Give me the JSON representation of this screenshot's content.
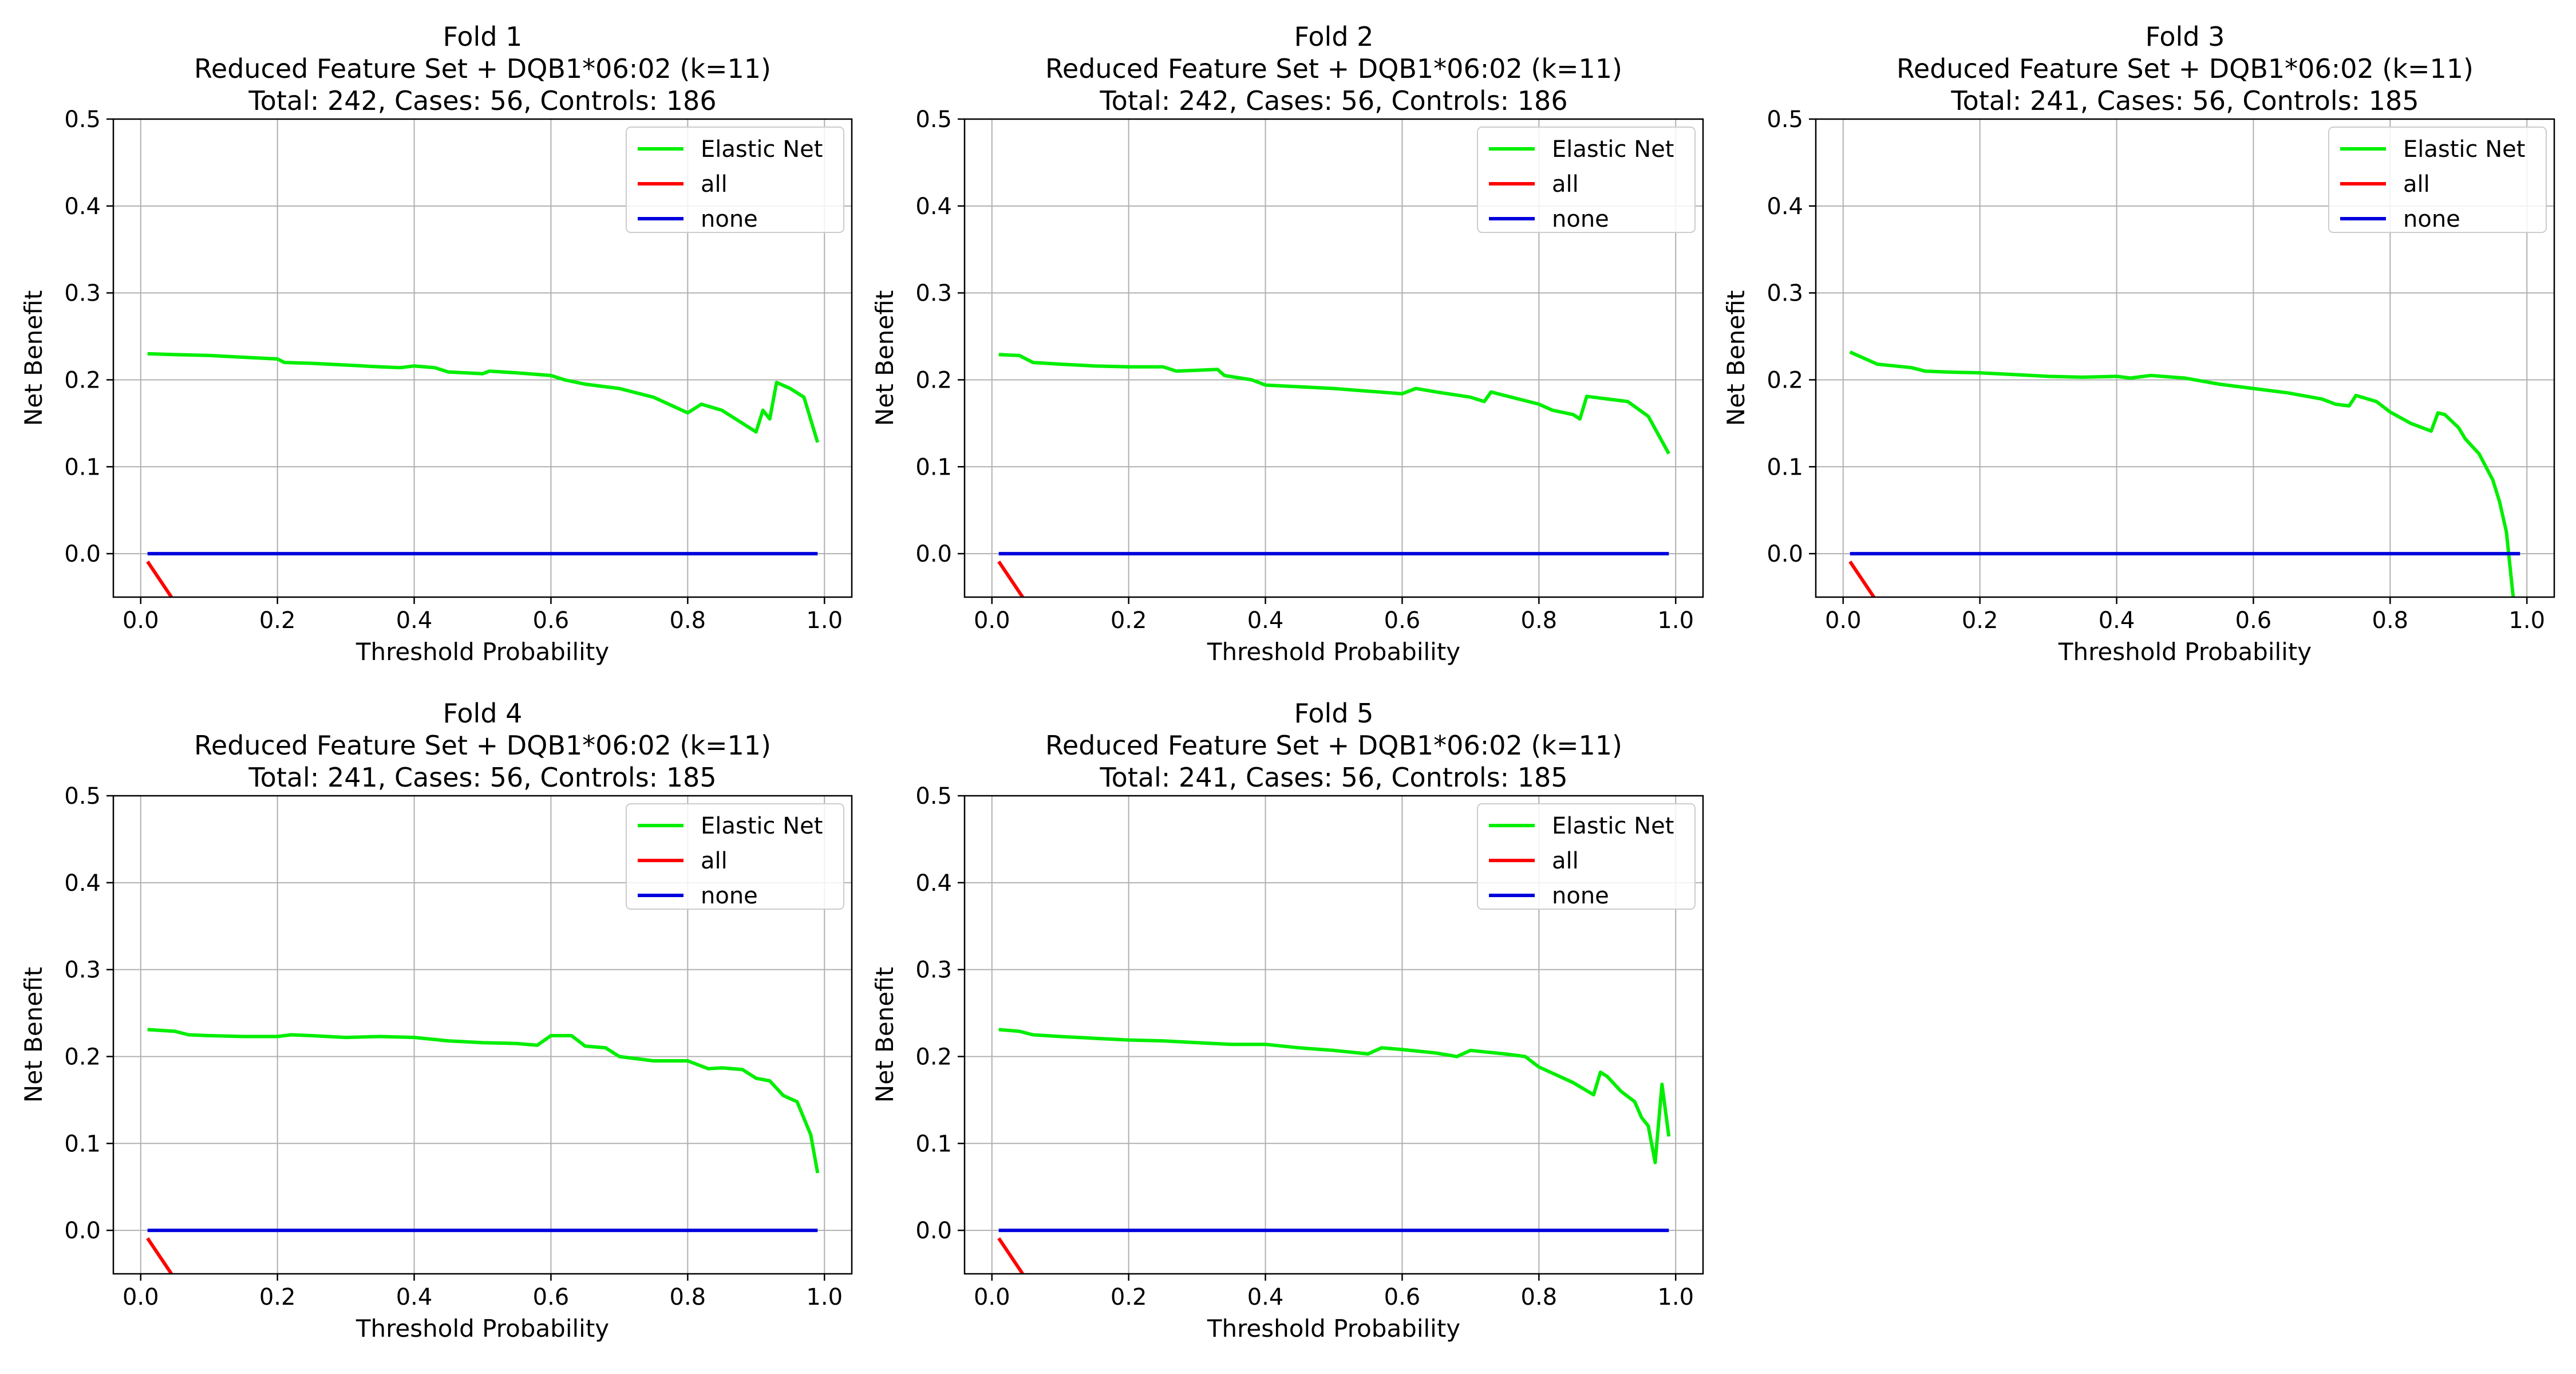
{
  "figure": {
    "layout": {
      "rows": 2,
      "cols": 3
    },
    "colors": {
      "Elastic Net": "#00ee00",
      "all": "#ff0000",
      "none": "#0000dd",
      "grid": "#b0b0b0"
    }
  },
  "chart_data": [
    {
      "type": "line",
      "title": "Fold 1",
      "subtitle": "Reduced Feature Set + DQB1*06:02 (k=11)",
      "summary": "Total: 242, Cases: 56, Controls: 186",
      "xlabel": "Threshold Probability",
      "ylabel": "Net Benefit",
      "xlim": [
        -0.04,
        1.04
      ],
      "ylim": [
        -0.05,
        0.5
      ],
      "xticks": [
        "0.0",
        "0.2",
        "0.4",
        "0.6",
        "0.8",
        "1.0"
      ],
      "yticks": [
        "0.0",
        "0.1",
        "0.2",
        "0.3",
        "0.4",
        "0.5"
      ],
      "grid": true,
      "legend": "top-right",
      "series": [
        {
          "name": "Elastic Net",
          "color": "#00ee00",
          "x": [
            0.01,
            0.05,
            0.1,
            0.15,
            0.2,
            0.21,
            0.25,
            0.3,
            0.35,
            0.38,
            0.4,
            0.43,
            0.45,
            0.5,
            0.51,
            0.55,
            0.6,
            0.62,
            0.65,
            0.7,
            0.75,
            0.8,
            0.82,
            0.85,
            0.9,
            0.91,
            0.92,
            0.93,
            0.95,
            0.97,
            0.99
          ],
          "y": [
            0.23,
            0.229,
            0.228,
            0.226,
            0.224,
            0.22,
            0.219,
            0.217,
            0.215,
            0.214,
            0.216,
            0.214,
            0.209,
            0.207,
            0.21,
            0.208,
            0.205,
            0.2,
            0.195,
            0.19,
            0.18,
            0.162,
            0.172,
            0.165,
            0.14,
            0.165,
            0.155,
            0.197,
            0.19,
            0.18,
            0.128
          ]
        },
        {
          "name": "all",
          "color": "#ff0000",
          "x": [
            0.01,
            0.045
          ],
          "y": [
            -0.009,
            -0.05
          ]
        },
        {
          "name": "none",
          "color": "#0000dd",
          "x": [
            0.01,
            0.99
          ],
          "y": [
            0,
            0
          ]
        }
      ]
    },
    {
      "type": "line",
      "title": "Fold 2",
      "subtitle": "Reduced Feature Set + DQB1*06:02 (k=11)",
      "summary": "Total: 242, Cases: 56, Controls: 186",
      "xlabel": "Threshold Probability",
      "ylabel": "Net Benefit",
      "xlim": [
        -0.04,
        1.04
      ],
      "ylim": [
        -0.05,
        0.5
      ],
      "xticks": [
        "0.0",
        "0.2",
        "0.4",
        "0.6",
        "0.8",
        "1.0"
      ],
      "yticks": [
        "0.0",
        "0.1",
        "0.2",
        "0.3",
        "0.4",
        "0.5"
      ],
      "grid": true,
      "legend": "top-right",
      "series": [
        {
          "name": "Elastic Net",
          "color": "#00ee00",
          "x": [
            0.01,
            0.04,
            0.06,
            0.1,
            0.15,
            0.2,
            0.25,
            0.27,
            0.3,
            0.33,
            0.34,
            0.38,
            0.4,
            0.45,
            0.5,
            0.55,
            0.6,
            0.62,
            0.65,
            0.7,
            0.72,
            0.73,
            0.75,
            0.8,
            0.82,
            0.85,
            0.86,
            0.87,
            0.9,
            0.93,
            0.96,
            0.99
          ],
          "y": [
            0.229,
            0.228,
            0.22,
            0.218,
            0.216,
            0.215,
            0.215,
            0.21,
            0.211,
            0.212,
            0.205,
            0.2,
            0.194,
            0.192,
            0.19,
            0.187,
            0.184,
            0.19,
            0.186,
            0.18,
            0.175,
            0.186,
            0.182,
            0.172,
            0.165,
            0.16,
            0.155,
            0.181,
            0.178,
            0.175,
            0.158,
            0.115
          ]
        },
        {
          "name": "all",
          "color": "#ff0000",
          "x": [
            0.01,
            0.045
          ],
          "y": [
            -0.009,
            -0.05
          ]
        },
        {
          "name": "none",
          "color": "#0000dd",
          "x": [
            0.01,
            0.99
          ],
          "y": [
            0,
            0
          ]
        }
      ]
    },
    {
      "type": "line",
      "title": "Fold 3",
      "subtitle": "Reduced Feature Set + DQB1*06:02 (k=11)",
      "summary": "Total: 241, Cases: 56, Controls: 185",
      "xlabel": "Threshold Probability",
      "ylabel": "Net Benefit",
      "xlim": [
        -0.04,
        1.04
      ],
      "ylim": [
        -0.05,
        0.5
      ],
      "xticks": [
        "0.0",
        "0.2",
        "0.4",
        "0.6",
        "0.8",
        "1.0"
      ],
      "yticks": [
        "0.0",
        "0.1",
        "0.2",
        "0.3",
        "0.4",
        "0.5"
      ],
      "grid": true,
      "legend": "top-right",
      "series": [
        {
          "name": "Elastic Net",
          "color": "#00ee00",
          "x": [
            0.01,
            0.05,
            0.1,
            0.12,
            0.15,
            0.2,
            0.25,
            0.3,
            0.35,
            0.4,
            0.42,
            0.45,
            0.5,
            0.55,
            0.6,
            0.65,
            0.7,
            0.72,
            0.74,
            0.75,
            0.78,
            0.8,
            0.83,
            0.86,
            0.87,
            0.88,
            0.9,
            0.91,
            0.93,
            0.95,
            0.96,
            0.97,
            0.98
          ],
          "y": [
            0.232,
            0.218,
            0.214,
            0.21,
            0.209,
            0.208,
            0.206,
            0.204,
            0.203,
            0.204,
            0.202,
            0.205,
            0.202,
            0.195,
            0.19,
            0.185,
            0.178,
            0.172,
            0.17,
            0.182,
            0.175,
            0.163,
            0.15,
            0.141,
            0.162,
            0.16,
            0.145,
            0.132,
            0.115,
            0.085,
            0.06,
            0.025,
            -0.05
          ]
        },
        {
          "name": "all",
          "color": "#ff0000",
          "x": [
            0.01,
            0.045
          ],
          "y": [
            -0.009,
            -0.05
          ]
        },
        {
          "name": "none",
          "color": "#0000dd",
          "x": [
            0.01,
            0.99
          ],
          "y": [
            0,
            0
          ]
        }
      ]
    },
    {
      "type": "line",
      "title": "Fold 4",
      "subtitle": "Reduced Feature Set + DQB1*06:02 (k=11)",
      "summary": "Total: 241, Cases: 56, Controls: 185",
      "xlabel": "Threshold Probability",
      "ylabel": "Net Benefit",
      "xlim": [
        -0.04,
        1.04
      ],
      "ylim": [
        -0.05,
        0.5
      ],
      "xticks": [
        "0.0",
        "0.2",
        "0.4",
        "0.6",
        "0.8",
        "1.0"
      ],
      "yticks": [
        "0.0",
        "0.1",
        "0.2",
        "0.3",
        "0.4",
        "0.5"
      ],
      "grid": true,
      "legend": "top-right",
      "series": [
        {
          "name": "Elastic Net",
          "color": "#00ee00",
          "x": [
            0.01,
            0.05,
            0.07,
            0.1,
            0.15,
            0.2,
            0.22,
            0.25,
            0.3,
            0.35,
            0.4,
            0.45,
            0.5,
            0.55,
            0.58,
            0.6,
            0.63,
            0.65,
            0.68,
            0.7,
            0.75,
            0.8,
            0.83,
            0.85,
            0.88,
            0.9,
            0.92,
            0.94,
            0.96,
            0.98,
            0.99
          ],
          "y": [
            0.231,
            0.229,
            0.225,
            0.224,
            0.223,
            0.223,
            0.225,
            0.224,
            0.222,
            0.223,
            0.222,
            0.218,
            0.216,
            0.215,
            0.213,
            0.224,
            0.224,
            0.212,
            0.21,
            0.2,
            0.195,
            0.195,
            0.186,
            0.187,
            0.185,
            0.175,
            0.172,
            0.155,
            0.148,
            0.11,
            0.066
          ]
        },
        {
          "name": "all",
          "color": "#ff0000",
          "x": [
            0.01,
            0.045
          ],
          "y": [
            -0.009,
            -0.05
          ]
        },
        {
          "name": "none",
          "color": "#0000dd",
          "x": [
            0.01,
            0.99
          ],
          "y": [
            0,
            0
          ]
        }
      ]
    },
    {
      "type": "line",
      "title": "Fold 5",
      "subtitle": "Reduced Feature Set + DQB1*06:02 (k=11)",
      "summary": "Total: 241, Cases: 56, Controls: 185",
      "xlabel": "Threshold Probability",
      "ylabel": "Net Benefit",
      "xlim": [
        -0.04,
        1.04
      ],
      "ylim": [
        -0.05,
        0.5
      ],
      "xticks": [
        "0.0",
        "0.2",
        "0.4",
        "0.6",
        "0.8",
        "1.0"
      ],
      "yticks": [
        "0.0",
        "0.1",
        "0.2",
        "0.3",
        "0.4",
        "0.5"
      ],
      "grid": true,
      "legend": "top-right",
      "series": [
        {
          "name": "Elastic Net",
          "color": "#00ee00",
          "x": [
            0.01,
            0.04,
            0.06,
            0.1,
            0.15,
            0.2,
            0.25,
            0.3,
            0.35,
            0.4,
            0.45,
            0.5,
            0.55,
            0.57,
            0.6,
            0.65,
            0.68,
            0.7,
            0.75,
            0.78,
            0.8,
            0.85,
            0.88,
            0.89,
            0.9,
            0.92,
            0.94,
            0.95,
            0.96,
            0.97,
            0.98,
            0.99
          ],
          "y": [
            0.231,
            0.229,
            0.225,
            0.223,
            0.221,
            0.219,
            0.218,
            0.216,
            0.214,
            0.214,
            0.21,
            0.207,
            0.203,
            0.21,
            0.208,
            0.204,
            0.2,
            0.207,
            0.203,
            0.2,
            0.188,
            0.17,
            0.156,
            0.182,
            0.177,
            0.16,
            0.148,
            0.13,
            0.12,
            0.078,
            0.168,
            0.108
          ]
        },
        {
          "name": "all",
          "color": "#ff0000",
          "x": [
            0.01,
            0.045
          ],
          "y": [
            -0.009,
            -0.05
          ]
        },
        {
          "name": "none",
          "color": "#0000dd",
          "x": [
            0.01,
            0.99
          ],
          "y": [
            0,
            0
          ]
        }
      ]
    }
  ]
}
